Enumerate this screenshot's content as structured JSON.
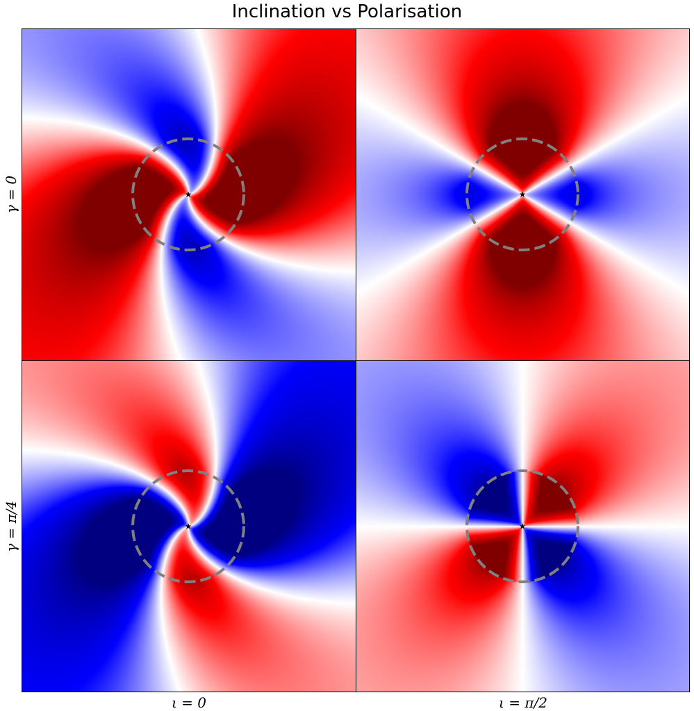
{
  "title": "Inclination vs Polarisation",
  "colors": {
    "positive": "#ff0000",
    "positive_max": "#800000",
    "negative": "#0000ff",
    "negative_max": "#000080",
    "zero": "#ffffff",
    "circle": "#808080",
    "star": "#000000"
  },
  "chart_data": {
    "type": "heatmap",
    "colormap": "seismic",
    "grid": false,
    "legend": "none",
    "rows": [
      {
        "label": "γ = 0"
      },
      {
        "label": "γ = π/4"
      }
    ],
    "columns": [
      {
        "label": "ι = 0"
      },
      {
        "label": "ι = π/2"
      }
    ],
    "panels": [
      {
        "row": 0,
        "col": 0,
        "gamma": "0",
        "iota": "0",
        "pattern": "rotating-spiral",
        "dominant_sign": "positive"
      },
      {
        "row": 0,
        "col": 1,
        "gamma": "0",
        "iota": "π/2",
        "pattern": "symmetric-lobes",
        "dominant_sign": "positive"
      },
      {
        "row": 1,
        "col": 0,
        "gamma": "π/4",
        "iota": "0",
        "pattern": "rotating-spiral",
        "dominant_sign": "negative"
      },
      {
        "row": 1,
        "col": 1,
        "gamma": "π/4",
        "iota": "π/2",
        "pattern": "quadrupole",
        "dominant_sign": "mixed"
      }
    ],
    "marker": {
      "shape": "star",
      "color": "black"
    },
    "circle": {
      "style": "dashed",
      "color": "gray"
    }
  }
}
